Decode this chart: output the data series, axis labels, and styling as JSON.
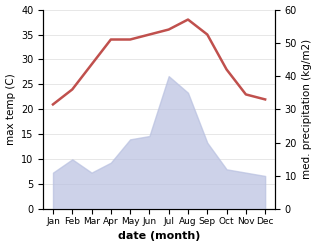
{
  "months": [
    "Jan",
    "Feb",
    "Mar",
    "Apr",
    "May",
    "Jun",
    "Jul",
    "Aug",
    "Sep",
    "Oct",
    "Nov",
    "Dec"
  ],
  "temperature": [
    21,
    24,
    29,
    34,
    34,
    35,
    36,
    38,
    35,
    28,
    23,
    22
  ],
  "precipitation": [
    11,
    15,
    11,
    14,
    21,
    22,
    40,
    35,
    20,
    12,
    11,
    10
  ],
  "temp_color": "#c0504d",
  "precip_color": "#b8c0e0",
  "temp_ylim": [
    0,
    40
  ],
  "precip_ylim": [
    0,
    60
  ],
  "xlabel": "date (month)",
  "ylabel_left": "max temp (C)",
  "ylabel_right": "med. precipitation (kg/m2)",
  "plot_bg_color": "#ffffff"
}
